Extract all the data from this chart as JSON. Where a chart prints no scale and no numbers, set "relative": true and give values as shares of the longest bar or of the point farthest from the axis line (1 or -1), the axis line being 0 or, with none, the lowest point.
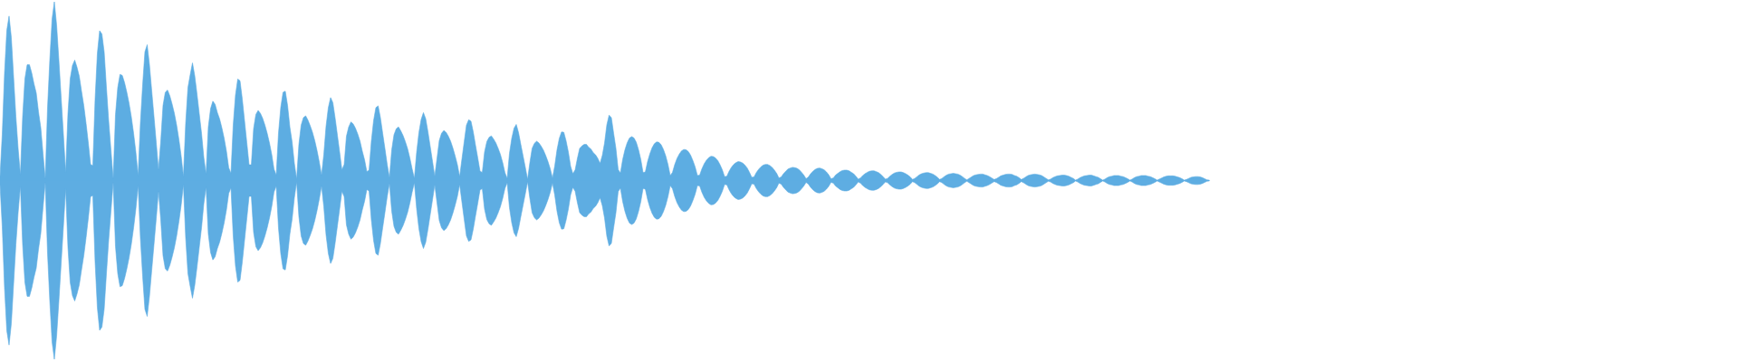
{
  "chart_data": {
    "type": "area",
    "relative": true,
    "tick_labels": false,
    "categories": [
      null,
      null,
      null,
      null,
      null,
      null,
      null,
      null,
      null,
      null,
      null,
      null,
      null,
      null,
      null,
      null,
      null,
      null,
      null,
      null,
      null,
      null,
      null,
      null,
      null,
      null,
      null,
      null,
      null,
      null,
      null,
      null,
      null,
      null,
      null,
      null,
      null,
      null,
      null,
      null,
      null,
      null,
      null,
      null,
      null,
      null,
      null,
      null,
      null,
      null,
      null,
      null,
      null,
      null,
      null,
      null,
      null,
      null,
      null,
      null,
      null,
      null,
      null,
      null,
      null,
      null,
      null,
      null,
      null,
      null,
      null,
      null,
      null,
      null,
      null,
      null,
      null,
      null,
      null,
      null,
      null,
      null,
      null,
      null,
      null,
      null,
      null,
      null,
      null,
      null,
      null,
      null,
      null,
      null,
      null,
      null,
      null,
      null,
      null,
      null,
      null,
      null,
      null,
      null,
      null,
      null,
      null,
      null,
      null,
      null,
      null,
      null,
      null,
      null,
      null,
      null,
      null,
      null,
      null,
      null,
      null,
      null,
      null,
      null,
      null,
      null,
      null,
      null,
      null,
      null,
      null,
      null,
      null,
      null,
      null,
      null,
      null,
      null,
      null,
      null,
      null,
      null,
      null,
      null,
      null,
      null,
      null,
      null,
      null,
      null,
      null,
      null,
      null,
      null,
      null,
      null,
      null,
      null,
      null,
      null,
      null,
      null,
      null,
      null,
      null,
      null,
      null,
      null,
      null,
      null,
      null,
      null,
      null,
      null,
      null,
      null,
      null,
      null,
      null,
      null,
      null,
      null,
      null,
      null,
      null,
      null,
      null,
      null,
      null,
      null,
      null,
      null,
      null,
      null,
      null,
      null,
      null,
      null,
      null,
      null,
      null,
      null,
      null,
      null,
      null,
      null,
      null,
      null,
      null,
      null,
      null,
      null,
      null,
      null,
      null,
      null,
      null,
      null,
      null,
      null,
      null,
      null,
      null,
      null,
      null,
      null,
      null,
      null,
      null,
      null,
      null,
      null,
      null,
      null,
      null,
      null,
      null,
      null,
      null,
      null,
      null,
      null,
      null,
      null,
      null,
      null,
      null,
      null,
      null,
      null,
      null,
      null,
      null,
      null,
      null,
      null,
      null,
      null,
      null,
      null,
      null,
      null,
      null,
      null,
      null,
      null,
      null,
      null,
      null,
      null,
      null,
      null,
      null,
      null,
      null,
      null,
      null,
      null,
      null,
      null,
      null,
      null,
      null,
      null,
      null,
      null,
      null,
      null,
      null,
      null,
      null,
      null,
      null,
      null,
      null,
      null,
      null,
      null,
      null,
      null,
      null,
      null,
      null,
      null,
      null,
      null,
      null,
      null,
      null,
      null,
      null,
      null,
      null,
      null,
      null,
      null,
      null,
      null,
      null,
      null,
      null,
      null,
      null,
      null,
      null,
      null,
      null,
      null,
      null,
      null,
      null,
      null,
      null,
      null,
      null,
      null,
      null,
      null,
      null,
      null,
      null,
      null,
      null,
      null,
      null,
      null,
      null,
      null,
      null,
      null,
      null,
      null,
      null,
      null,
      null,
      null,
      null,
      null,
      null,
      null,
      null,
      null,
      null,
      null,
      null,
      null,
      null,
      null,
      null,
      null,
      null,
      null,
      null,
      null,
      null,
      null,
      null,
      null,
      null,
      null,
      null,
      null,
      null,
      null,
      null,
      null,
      null,
      null,
      null,
      null,
      null,
      null,
      null,
      null,
      null,
      null,
      null,
      null,
      null,
      null,
      null,
      null,
      null,
      null,
      null,
      null,
      null,
      null,
      null,
      null,
      null,
      null,
      null,
      null,
      null,
      null,
      null,
      null,
      null,
      null,
      null,
      null,
      null,
      null,
      null,
      null,
      null,
      null,
      null,
      null,
      null,
      null,
      null,
      null,
      null,
      null,
      null,
      null,
      null,
      null,
      null,
      null,
      null,
      null,
      null,
      null,
      null,
      null,
      null,
      null,
      null,
      null,
      null,
      null,
      null,
      null,
      null,
      null,
      null,
      null,
      null,
      null,
      null,
      null,
      null,
      null,
      null,
      null,
      null,
      null,
      null,
      null,
      null,
      null,
      null,
      null,
      null,
      null,
      null,
      null,
      null,
      null,
      null,
      null,
      null,
      null,
      null,
      null,
      null,
      null,
      null,
      null,
      null,
      null,
      null,
      null,
      null,
      null,
      null,
      null,
      null,
      null,
      null,
      null,
      null,
      null,
      null,
      null,
      null,
      null,
      null,
      null,
      null,
      null,
      null,
      null,
      null,
      null,
      null,
      null,
      null,
      null,
      null,
      null,
      null,
      null,
      null,
      null,
      null,
      null,
      null,
      null,
      null,
      null,
      null
    ],
    "series": [
      {
        "color": "#5dade2",
        "values": [
          0.022,
          0.26,
          0.6,
          0.84,
          0.92,
          0.8,
          0.58,
          0.36,
          0.18,
          0.03,
          0.358,
          0.57,
          0.648,
          0.648,
          0.602,
          0.542,
          0.49,
          0.384,
          0.296,
          0.15,
          0.01,
          0.408,
          0.676,
          0.904,
          1,
          0.87,
          0.672,
          0.464,
          0.258,
          0.044,
          0.372,
          0.57,
          0.644,
          0.674,
          0.634,
          0.584,
          0.5,
          0.42,
          0.32,
          0.21,
          0.09,
          0.084,
          0.456,
          0.712,
          0.838,
          0.82,
          0.72,
          0.52,
          0.332,
          0.17,
          0.01,
          0.368,
          0.52,
          0.594,
          0.588,
          0.548,
          0.494,
          0.432,
          0.356,
          0.264,
          0.158,
          0.026,
          0.32,
          0.536,
          0.72,
          0.76,
          0.648,
          0.502,
          0.358,
          0.212,
          0.06,
          0.22,
          0.42,
          0.494,
          0.506,
          0.474,
          0.428,
          0.376,
          0.31,
          0.23,
          0.138,
          0.022,
          0.32,
          0.52,
          0.592,
          0.658,
          0.586,
          0.484,
          0.374,
          0.264,
          0.13,
          0.036,
          0.3,
          0.402,
          0.444,
          0.426,
          0.38,
          0.344,
          0.294,
          0.236,
          0.164,
          0.072,
          0.04,
          0.312,
          0.478,
          0.568,
          0.558,
          0.456,
          0.334,
          0.212,
          0.088,
          0.088,
          0.29,
          0.37,
          0.392,
          0.376,
          0.348,
          0.31,
          0.264,
          0.21,
          0.146,
          0.064,
          0.03,
          0.266,
          0.41,
          0.494,
          0.5,
          0.42,
          0.3,
          0.216,
          0.096,
          0.008,
          0.202,
          0.31,
          0.352,
          0.362,
          0.338,
          0.306,
          0.27,
          0.224,
          0.168,
          0.104,
          0.03,
          0.146,
          0.304,
          0.408,
          0.464,
          0.436,
          0.35,
          0.254,
          0.158,
          0.06,
          0.09,
          0.248,
          0.3,
          0.328,
          0.316,
          0.292,
          0.26,
          0.22,
          0.164,
          0.116,
          0.05,
          0.058,
          0.22,
          0.336,
          0.408,
          0.418,
          0.352,
          0.264,
          0.178,
          0.09,
          0.016,
          0.172,
          0.256,
          0.29,
          0.3,
          0.278,
          0.252,
          0.218,
          0.178,
          0.126,
          0.066,
          0.012,
          0.158,
          0.268,
          0.342,
          0.38,
          0.346,
          0.272,
          0.19,
          0.108,
          0.024,
          0.124,
          0.224,
          0.264,
          0.28,
          0.27,
          0.248,
          0.22,
          0.182,
          0.138,
          0.088,
          0.022,
          0.12,
          0.216,
          0.31,
          0.34,
          0.332,
          0.272,
          0.198,
          0.126,
          0.052,
          0.046,
          0.16,
          0.218,
          0.242,
          0.25,
          0.232,
          0.21,
          0.18,
          0.146,
          0.1,
          0.044,
          0.012,
          0.152,
          0.236,
          0.292,
          0.314,
          0.268,
          0.202,
          0.138,
          0.074,
          0.006,
          0.1,
          0.18,
          0.208,
          0.22,
          0.21,
          0.192,
          0.17,
          0.14,
          0.106,
          0.066,
          0.014,
          0.082,
          0.172,
          0.236,
          0.272,
          0.27,
          0.222,
          0.16,
          0.08,
          0.038,
          0.06,
          0.124,
          0.18,
          0.194,
          0.202,
          0.202,
          0.186,
          0.176,
          0.156,
          0.144,
          0.124,
          0.096,
          0.14,
          0.21,
          0.312,
          0.366,
          0.352,
          0.264,
          0.18,
          0.062,
          0.042,
          0.118,
          0.172,
          0.212,
          0.238,
          0.246,
          0.238,
          0.214,
          0.172,
          0.118,
          0.044,
          0.048,
          0.106,
          0.15,
          0.184,
          0.206,
          0.216,
          0.214,
          0.2,
          0.174,
          0.138,
          0.09,
          0.028,
          0.046,
          0.09,
          0.124,
          0.148,
          0.166,
          0.174,
          0.172,
          0.162,
          0.142,
          0.112,
          0.076,
          0.028,
          0.03,
          0.066,
          0.094,
          0.114,
          0.128,
          0.136,
          0.134,
          0.126,
          0.112,
          0.088,
          0.06,
          0.022,
          0.024,
          0.052,
          0.074,
          0.09,
          0.1,
          0.106,
          0.104,
          0.098,
          0.086,
          0.07,
          0.046,
          0.018,
          0.02,
          0.044,
          0.062,
          0.076,
          0.086,
          0.09,
          0.09,
          0.084,
          0.074,
          0.058,
          0.04,
          0.014,
          0.02,
          0.038,
          0.052,
          0.064,
          0.07,
          0.074,
          0.072,
          0.068,
          0.06,
          0.046,
          0.03,
          0.01,
          0.02,
          0.038,
          0.052,
          0.062,
          0.068,
          0.07,
          0.066,
          0.06,
          0.048,
          0.032,
          0.01,
          0.014,
          0.03,
          0.04,
          0.05,
          0.056,
          0.058,
          0.058,
          0.054,
          0.046,
          0.038,
          0.024,
          0.008,
          0.014,
          0.028,
          0.038,
          0.046,
          0.052,
          0.054,
          0.054,
          0.05,
          0.044,
          0.034,
          0.022,
          0.008,
          0.012,
          0.024,
          0.034,
          0.042,
          0.046,
          0.048,
          0.048,
          0.044,
          0.038,
          0.03,
          0.02,
          0.006,
          0.012,
          0.022,
          0.032,
          0.038,
          0.042,
          0.044,
          0.044,
          0.04,
          0.036,
          0.028,
          0.018,
          0.006,
          0.012,
          0.022,
          0.03,
          0.036,
          0.038,
          0.04,
          0.038,
          0.036,
          0.03,
          0.022,
          0.012,
          0.004,
          0.012,
          0.02,
          0.028,
          0.032,
          0.034,
          0.036,
          0.036,
          0.032,
          0.028,
          0.022,
          0.014,
          0.006,
          0.01,
          0.018,
          0.026,
          0.03,
          0.034,
          0.036,
          0.036,
          0.034,
          0.028,
          0.024,
          0.016,
          0.006,
          0.012,
          0.02,
          0.028,
          0.032,
          0.034,
          0.036,
          0.034,
          0.032,
          0.028,
          0.02,
          0.012,
          0.004,
          0.008,
          0.016,
          0.022,
          0.026,
          0.028,
          0.03,
          0.03,
          0.028,
          0.024,
          0.018,
          0.012,
          0.002,
          0.008,
          0.016,
          0.022,
          0.026,
          0.028,
          0.03,
          0.03,
          0.026,
          0.022,
          0.018,
          0.01,
          0.002,
          0.008,
          0.016,
          0.022,
          0.024,
          0.028,
          0.028,
          0.028,
          0.024,
          0.022,
          0.016,
          0.01,
          0.002,
          0.008,
          0.016,
          0.022,
          0.024,
          0.028,
          0.028,
          0.028,
          0.024,
          0.022,
          0.016,
          0.01,
          0.002,
          0.008,
          0.014,
          0.02,
          0.024,
          0.026,
          0.026,
          0.026,
          0.024,
          0.02,
          0.016,
          0.01,
          0.002,
          0.006,
          0.012,
          0.018,
          0.02,
          0.022,
          0.022,
          0.02,
          0.016,
          0.01,
          0.004,
          0.002
        ]
      },
      {
        "color": "#5eade2",
        "values": [
          -0.022,
          -0.26,
          -0.6,
          -0.84,
          -0.92,
          -0.8,
          -0.58,
          -0.36,
          -0.18,
          -0.03,
          -0.358,
          -0.57,
          -0.648,
          -0.648,
          -0.602,
          -0.542,
          -0.49,
          -0.384,
          -0.296,
          -0.15,
          -0.01,
          -0.408,
          -0.676,
          -0.904,
          -1,
          -0.87,
          -0.672,
          -0.464,
          -0.258,
          -0.044,
          -0.372,
          -0.57,
          -0.644,
          -0.674,
          -0.634,
          -0.584,
          -0.5,
          -0.42,
          -0.32,
          -0.21,
          -0.09,
          -0.084,
          -0.456,
          -0.712,
          -0.838,
          -0.82,
          -0.72,
          -0.52,
          -0.332,
          -0.17,
          -0.01,
          -0.368,
          -0.52,
          -0.594,
          -0.588,
          -0.548,
          -0.494,
          -0.432,
          -0.356,
          -0.264,
          -0.158,
          -0.026,
          -0.32,
          -0.536,
          -0.72,
          -0.76,
          -0.648,
          -0.502,
          -0.358,
          -0.212,
          -0.06,
          -0.22,
          -0.42,
          -0.494,
          -0.506,
          -0.474,
          -0.428,
          -0.376,
          -0.31,
          -0.23,
          -0.138,
          -0.022,
          -0.32,
          -0.52,
          -0.592,
          -0.658,
          -0.586,
          -0.484,
          -0.374,
          -0.264,
          -0.13,
          -0.036,
          -0.3,
          -0.402,
          -0.444,
          -0.426,
          -0.38,
          -0.344,
          -0.294,
          -0.236,
          -0.164,
          -0.072,
          -0.04,
          -0.312,
          -0.478,
          -0.568,
          -0.558,
          -0.456,
          -0.334,
          -0.212,
          -0.088,
          -0.088,
          -0.29,
          -0.37,
          -0.392,
          -0.376,
          -0.348,
          -0.31,
          -0.264,
          -0.21,
          -0.146,
          -0.064,
          -0.03,
          -0.266,
          -0.41,
          -0.494,
          -0.5,
          -0.42,
          -0.3,
          -0.216,
          -0.096,
          -0.008,
          -0.202,
          -0.31,
          -0.352,
          -0.362,
          -0.338,
          -0.306,
          -0.27,
          -0.224,
          -0.168,
          -0.104,
          -0.03,
          -0.146,
          -0.304,
          -0.408,
          -0.464,
          -0.436,
          -0.35,
          -0.254,
          -0.158,
          -0.06,
          -0.09,
          -0.248,
          -0.3,
          -0.328,
          -0.316,
          -0.292,
          -0.26,
          -0.22,
          -0.164,
          -0.116,
          -0.05,
          -0.058,
          -0.22,
          -0.336,
          -0.408,
          -0.418,
          -0.352,
          -0.264,
          -0.178,
          -0.09,
          -0.016,
          -0.172,
          -0.256,
          -0.29,
          -0.3,
          -0.278,
          -0.252,
          -0.218,
          -0.178,
          -0.126,
          -0.066,
          -0.012,
          -0.158,
          -0.268,
          -0.342,
          -0.38,
          -0.346,
          -0.272,
          -0.19,
          -0.108,
          -0.024,
          -0.124,
          -0.224,
          -0.264,
          -0.28,
          -0.27,
          -0.248,
          -0.22,
          -0.182,
          -0.138,
          -0.088,
          -0.022,
          -0.12,
          -0.216,
          -0.31,
          -0.34,
          -0.332,
          -0.272,
          -0.198,
          -0.126,
          -0.052,
          -0.046,
          -0.16,
          -0.218,
          -0.242,
          -0.25,
          -0.232,
          -0.21,
          -0.18,
          -0.146,
          -0.1,
          -0.044,
          -0.012,
          -0.152,
          -0.236,
          -0.292,
          -0.314,
          -0.268,
          -0.202,
          -0.138,
          -0.074,
          -0.006,
          -0.1,
          -0.18,
          -0.208,
          -0.22,
          -0.21,
          -0.192,
          -0.17,
          -0.14,
          -0.106,
          -0.066,
          -0.014,
          -0.082,
          -0.172,
          -0.236,
          -0.272,
          -0.27,
          -0.222,
          -0.16,
          -0.08,
          -0.038,
          -0.06,
          -0.124,
          -0.18,
          -0.194,
          -0.202,
          -0.202,
          -0.186,
          -0.176,
          -0.156,
          -0.144,
          -0.124,
          -0.096,
          -0.14,
          -0.21,
          -0.312,
          -0.366,
          -0.352,
          -0.264,
          -0.18,
          -0.062,
          -0.042,
          -0.118,
          -0.172,
          -0.212,
          -0.238,
          -0.246,
          -0.238,
          -0.214,
          -0.172,
          -0.118,
          -0.044,
          -0.048,
          -0.106,
          -0.15,
          -0.184,
          -0.206,
          -0.216,
          -0.214,
          -0.2,
          -0.174,
          -0.138,
          -0.09,
          -0.028,
          -0.046,
          -0.09,
          -0.124,
          -0.148,
          -0.166,
          -0.174,
          -0.172,
          -0.162,
          -0.142,
          -0.112,
          -0.076,
          -0.028,
          -0.03,
          -0.066,
          -0.094,
          -0.114,
          -0.128,
          -0.136,
          -0.134,
          -0.126,
          -0.112,
          -0.088,
          -0.06,
          -0.022,
          -0.024,
          -0.052,
          -0.074,
          -0.09,
          -0.1,
          -0.106,
          -0.104,
          -0.098,
          -0.086,
          -0.07,
          -0.046,
          -0.018,
          -0.02,
          -0.044,
          -0.062,
          -0.076,
          -0.086,
          -0.09,
          -0.09,
          -0.084,
          -0.074,
          -0.058,
          -0.04,
          -0.014,
          -0.02,
          -0.038,
          -0.052,
          -0.064,
          -0.07,
          -0.074,
          -0.072,
          -0.068,
          -0.06,
          -0.046,
          -0.03,
          -0.01,
          -0.02,
          -0.038,
          -0.052,
          -0.062,
          -0.068,
          -0.07,
          -0.066,
          -0.06,
          -0.048,
          -0.032,
          -0.01,
          -0.014,
          -0.03,
          -0.04,
          -0.05,
          -0.056,
          -0.058,
          -0.058,
          -0.054,
          -0.046,
          -0.038,
          -0.024,
          -0.008,
          -0.014,
          -0.028,
          -0.038,
          -0.046,
          -0.052,
          -0.054,
          -0.054,
          -0.05,
          -0.044,
          -0.034,
          -0.022,
          -0.008,
          -0.012,
          -0.024,
          -0.034,
          -0.042,
          -0.046,
          -0.048,
          -0.048,
          -0.044,
          -0.038,
          -0.03,
          -0.02,
          -0.006,
          -0.012,
          -0.022,
          -0.032,
          -0.038,
          -0.042,
          -0.044,
          -0.044,
          -0.04,
          -0.036,
          -0.028,
          -0.018,
          -0.006,
          -0.012,
          -0.022,
          -0.03,
          -0.036,
          -0.038,
          -0.04,
          -0.038,
          -0.036,
          -0.03,
          -0.022,
          -0.012,
          -0.004,
          -0.012,
          -0.02,
          -0.028,
          -0.032,
          -0.034,
          -0.036,
          -0.036,
          -0.032,
          -0.028,
          -0.022,
          -0.014,
          -0.006,
          -0.01,
          -0.018,
          -0.026,
          -0.03,
          -0.034,
          -0.036,
          -0.036,
          -0.034,
          -0.028,
          -0.024,
          -0.016,
          -0.006,
          -0.012,
          -0.02,
          -0.028,
          -0.032,
          -0.034,
          -0.036,
          -0.034,
          -0.032,
          -0.028,
          -0.02,
          -0.012,
          -0.004,
          -0.008,
          -0.016,
          -0.022,
          -0.026,
          -0.028,
          -0.03,
          -0.03,
          -0.028,
          -0.024,
          -0.018,
          -0.012,
          -0.002,
          -0.008,
          -0.016,
          -0.022,
          -0.026,
          -0.028,
          -0.03,
          -0.03,
          -0.026,
          -0.022,
          -0.018,
          -0.01,
          -0.002,
          -0.008,
          -0.016,
          -0.022,
          -0.024,
          -0.028,
          -0.028,
          -0.028,
          -0.024,
          -0.022,
          -0.016,
          -0.01,
          -0.002,
          -0.008,
          -0.016,
          -0.022,
          -0.024,
          -0.028,
          -0.028,
          -0.028,
          -0.024,
          -0.022,
          -0.016,
          -0.01,
          -0.002,
          -0.008,
          -0.014,
          -0.02,
          -0.024,
          -0.026,
          -0.026,
          -0.026,
          -0.024,
          -0.02,
          -0.016,
          -0.01,
          -0.002,
          -0.006,
          -0.012,
          -0.018,
          -0.02,
          -0.022,
          -0.022,
          -0.02,
          -0.016,
          -0.01,
          -0.004,
          -0.002
        ]
      }
    ]
  }
}
